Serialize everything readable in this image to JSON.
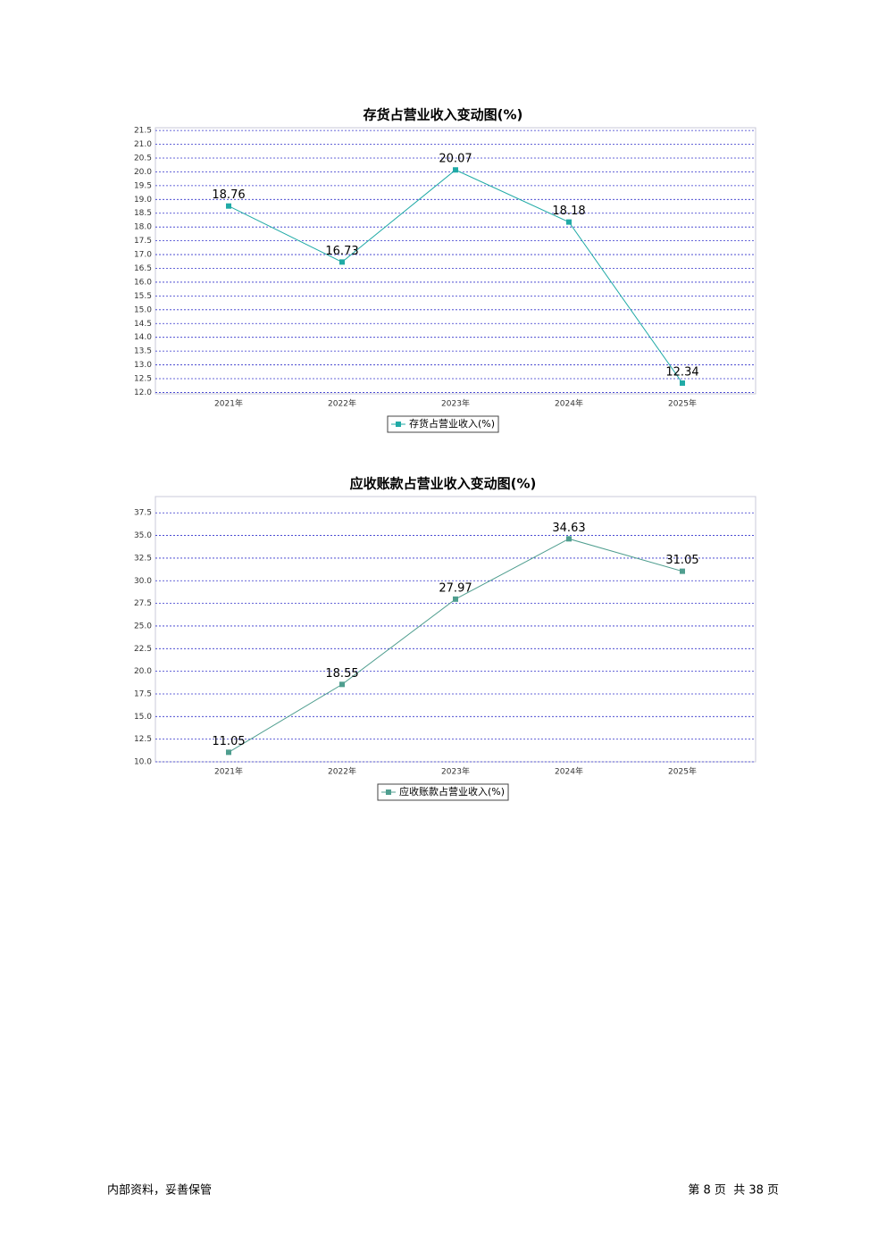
{
  "chart_data": [
    {
      "type": "line",
      "title": "存货占营业收入变动图(%)",
      "categories": [
        "2021年",
        "2022年",
        "2023年",
        "2024年",
        "2025年"
      ],
      "series": [
        {
          "name": "存货占营业收入(%)",
          "color": "#20aaa6",
          "values": [
            18.76,
            16.73,
            20.07,
            18.18,
            12.34
          ]
        }
      ],
      "ylim": [
        11.95,
        21.6
      ],
      "yticks": [
        {
          "value": 12,
          "label": "12.0"
        },
        12.5,
        {
          "value": 13,
          "label": "13.0"
        },
        13.5,
        {
          "value": 14,
          "label": "14.0"
        },
        14.5,
        {
          "value": 15,
          "label": "15.0"
        },
        15.5,
        {
          "value": 16,
          "label": "16.0"
        },
        16.5,
        {
          "value": 17,
          "label": "17.0"
        },
        17.5,
        {
          "value": 18,
          "label": "18.0"
        },
        18.5,
        {
          "value": 19,
          "label": "19.0"
        },
        19.5,
        {
          "value": 20,
          "label": "20.0"
        },
        20.5,
        {
          "value": 21,
          "label": "21.0"
        },
        21.5
      ],
      "grid": true,
      "legend": "bottom"
    },
    {
      "type": "line",
      "title": "应收账款占营业收入变动图(%)",
      "categories": [
        "2021年",
        "2022年",
        "2023年",
        "2024年",
        "2025年"
      ],
      "series": [
        {
          "name": "应收账款占营业收入(%)",
          "color": "#4f9e8f",
          "values": [
            11.05,
            18.55,
            27.97,
            34.63,
            31.05
          ]
        }
      ],
      "ylim": [
        10,
        39.3
      ],
      "yticks": [
        {
          "value": 10,
          "label": "10.0"
        },
        12.5,
        {
          "value": 15,
          "label": "15.0"
        },
        17.5,
        {
          "value": 20,
          "label": "20.0"
        },
        22.5,
        {
          "value": 25,
          "label": "25.0"
        },
        27.5,
        {
          "value": 30,
          "label": "30.0"
        },
        32.5,
        {
          "value": 35,
          "label": "35.0"
        },
        37.5
      ],
      "grid": true,
      "legend": "bottom"
    }
  ],
  "footer": {
    "left": "内部资料，妥善保管",
    "right": "第 8 页  共 38 页"
  }
}
